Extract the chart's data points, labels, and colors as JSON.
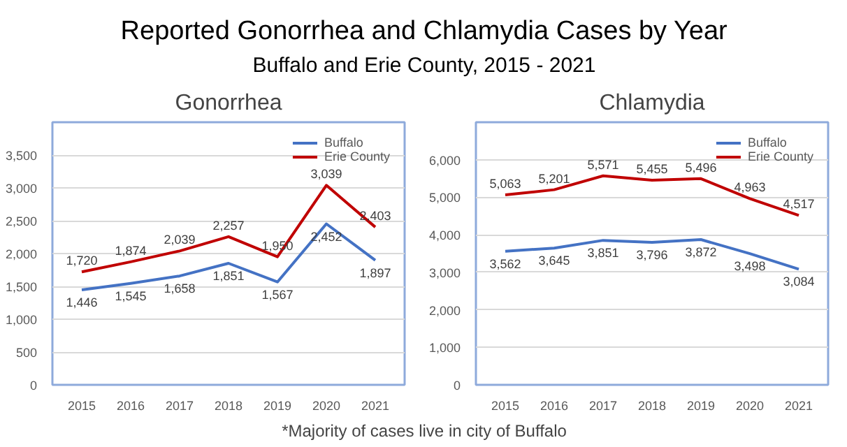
{
  "chart_data": [
    {
      "type": "other",
      "title": "Reported Gonorrhea and Chlamydia Cases by Year",
      "subtitle": "Buffalo and Erie County, 2015 - 2021",
      "annotations": [
        "*Majority of cases live in city of Buffalo"
      ]
    },
    {
      "type": "line",
      "title": "Gonorrhea",
      "categories": [
        "2015",
        "2016",
        "2017",
        "2018",
        "2019",
        "2020",
        "2021"
      ],
      "series": [
        {
          "name": "Buffalo",
          "color": "#4472c4",
          "values": [
            1446,
            1545,
            1658,
            1851,
            1567,
            2452,
            1897
          ],
          "value_labels": [
            "1,446",
            "1,545",
            "1,658",
            "1,851",
            "1,567",
            "2,452",
            "1,897"
          ]
        },
        {
          "name": "Erie County",
          "color": "#c00000",
          "values": [
            1720,
            1874,
            2039,
            2257,
            1950,
            3039,
            2403
          ],
          "value_labels": [
            "1,720",
            "1,874",
            "2,039",
            "2,257",
            "1,950",
            "3,039",
            "2,403"
          ]
        }
      ],
      "ylim": [
        0,
        4000
      ],
      "yticks": [
        0,
        500,
        {
          "value": 1000,
          "label": "1,000"
        },
        {
          "value": 1500,
          "label": "1,500"
        },
        {
          "value": 2000,
          "label": "2,000"
        },
        {
          "value": 2500,
          "label": "2,500"
        },
        {
          "value": 3000,
          "label": "3,000"
        },
        {
          "value": 3500,
          "label": "3,500"
        }
      ],
      "grid": "y",
      "legend": "top right",
      "marker": "none",
      "line_style": "solid"
    },
    {
      "type": "line",
      "title": "Chlamydia",
      "categories": [
        "2015",
        "2016",
        "2017",
        "2018",
        "2019",
        "2020",
        "2021"
      ],
      "series": [
        {
          "name": "Buffalo",
          "color": "#4472c4",
          "values": [
            3562,
            3645,
            3851,
            3796,
            3872,
            3498,
            3084
          ],
          "value_labels": [
            "3,562",
            "3,645",
            "3,851",
            "3,796",
            "3,872",
            "3,498",
            "3,084"
          ]
        },
        {
          "name": "Erie County",
          "color": "#c00000",
          "values": [
            5063,
            5201,
            5571,
            5455,
            5496,
            4963,
            4517
          ],
          "value_labels": [
            "5,063",
            "5,201",
            "5,571",
            "5,455",
            "5,496",
            "4,963",
            "4,517"
          ]
        }
      ],
      "ylim": [
        0,
        7000
      ],
      "yticks": [
        0,
        {
          "value": 1000,
          "label": "1,000"
        },
        {
          "value": 2000,
          "label": "2,000"
        },
        {
          "value": 3000,
          "label": "3,000"
        },
        {
          "value": 4000,
          "label": "4,000"
        },
        {
          "value": 5000,
          "label": "5,000"
        },
        {
          "value": 6000,
          "label": "6,000"
        }
      ],
      "grid": "y",
      "legend": "top right",
      "marker": "none",
      "line_style": "solid"
    }
  ]
}
